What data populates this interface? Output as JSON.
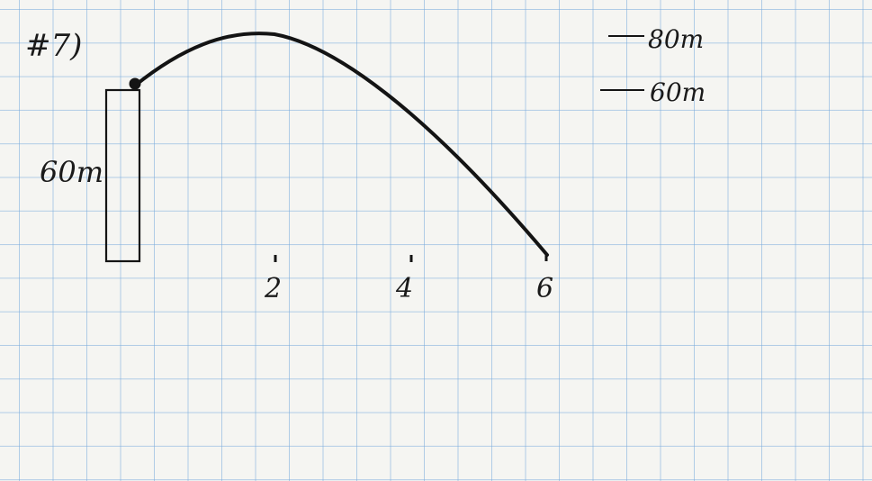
{
  "problem_label": "#7)",
  "cliff_label": "60m",
  "ticks": [
    "2",
    "4",
    "6"
  ],
  "height_labels": [
    "80m",
    "60m"
  ],
  "ink_color": "#141414"
}
